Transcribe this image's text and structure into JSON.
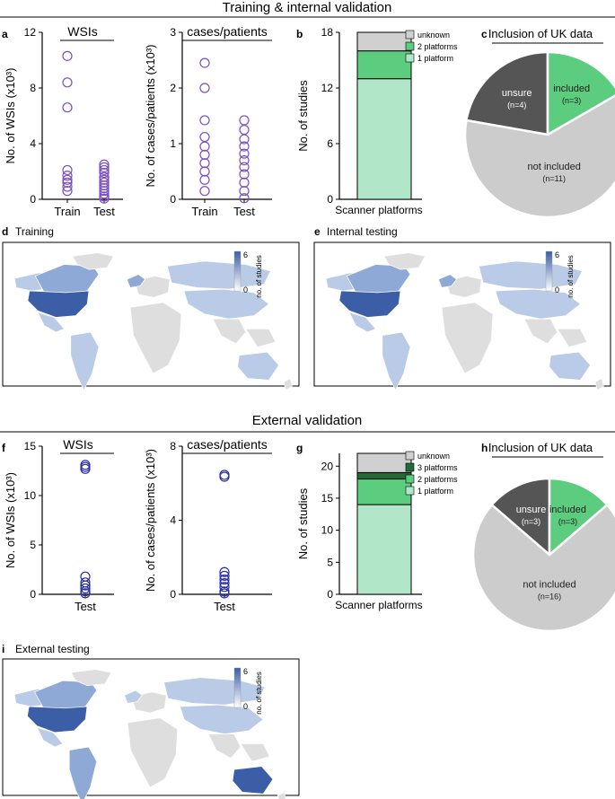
{
  "colors": {
    "circle_train": "#7b4fbf",
    "circle_ext": "#2b2fa6",
    "unknown": "#d0d0d0",
    "p3": "#1e6b35",
    "p2": "#5ccc7e",
    "p1": "#b2e6c8",
    "pie_unsure": "#555555",
    "pie_included": "#5ccc7e",
    "pie_not": "#cccccc",
    "map_land": "#dedede",
    "map_low": "#b9cbe6",
    "map_high": "#3b5ea6"
  },
  "headings": {
    "training": "Training & internal validation",
    "external": "External validation"
  },
  "panel_letters": {
    "a": "a",
    "b": "b",
    "c": "c",
    "d": "d",
    "e": "e",
    "f": "f",
    "g": "g",
    "h": "h",
    "i": "i"
  },
  "chart_data": [
    {
      "id": "a1",
      "type": "scatter",
      "title": "WSIs",
      "ylabel": "No. of WSIs (x10³)",
      "ylim": [
        0,
        12
      ],
      "yticks": [
        "0",
        "4",
        "8",
        "12"
      ],
      "categories": [
        "Train",
        "Test"
      ],
      "series": [
        {
          "name": "Train",
          "values": [
            10.3,
            8.4,
            6.6,
            2.1,
            1.7,
            1.4,
            1.2,
            0.9,
            0.6
          ]
        },
        {
          "name": "Test",
          "values": [
            2.5,
            2.3,
            2.1,
            1.9,
            1.6,
            1.4,
            1.2,
            1.0,
            0.8,
            0.6,
            0.4,
            0.2,
            0.05
          ]
        }
      ]
    },
    {
      "id": "a2",
      "type": "scatter",
      "title": "cases/patients",
      "ylabel": "No. of cases/patients (x10³)",
      "ylim": [
        0,
        3
      ],
      "yticks": [
        "0",
        "1",
        "2",
        "3"
      ],
      "categories": [
        "Train",
        "Test"
      ],
      "series": [
        {
          "name": "Train",
          "values": [
            2.45,
            2.0,
            1.42,
            1.12,
            0.95,
            0.8,
            0.65,
            0.5,
            0.35,
            0.15
          ]
        },
        {
          "name": "Test",
          "values": [
            1.42,
            1.25,
            1.08,
            0.95,
            0.82,
            0.7,
            0.58,
            0.45,
            0.3,
            0.15,
            0.02
          ]
        }
      ]
    },
    {
      "id": "b",
      "type": "bar",
      "stacked": true,
      "ylabel": "No. of studies",
      "xlabel": "Scanner platforms",
      "ylim": [
        0,
        18
      ],
      "yticks": [
        "0",
        "6",
        "12",
        "18"
      ],
      "series": [
        {
          "name": "1 platform",
          "value": 13,
          "color": "p1"
        },
        {
          "name": "2 platforms",
          "value": 3,
          "color": "p2"
        },
        {
          "name": "unknown",
          "value": 2,
          "color": "unknown"
        }
      ],
      "legend": [
        "unknown",
        "2 platforms",
        "1 platform"
      ]
    },
    {
      "id": "c",
      "type": "pie",
      "title": "Inclusion of UK data",
      "slices": [
        {
          "name": "unsure",
          "label": "unsure",
          "count": "(n=4)",
          "value": 4,
          "color": "pie_unsure"
        },
        {
          "name": "included",
          "label": "included",
          "count": "(n=3)",
          "value": 3,
          "color": "pie_included"
        },
        {
          "name": "not included",
          "label": "not included",
          "count": "(n=11)",
          "value": 11,
          "color": "pie_not"
        }
      ]
    },
    {
      "id": "f1",
      "type": "scatter",
      "title": "WSIs",
      "ylabel": "No. of WSIs (x10³)",
      "ylim": [
        0,
        15
      ],
      "yticks": [
        "0",
        "5",
        "10",
        "15"
      ],
      "categories": [
        "Test"
      ],
      "series": [
        {
          "name": "Test",
          "values": [
            13.1,
            12.9,
            12.7,
            1.8,
            1.2,
            0.9,
            0.6,
            0.3,
            0.1
          ]
        }
      ]
    },
    {
      "id": "f2",
      "type": "scatter",
      "title": "cases/patients",
      "ylabel": "No. of cases/patients (x10³)",
      "ylim": [
        0,
        8
      ],
      "yticks": [
        "0",
        "4",
        "8"
      ],
      "categories": [
        "Test"
      ],
      "series": [
        {
          "name": "Test",
          "values": [
            6.45,
            6.35,
            1.2,
            1.0,
            0.8,
            0.6,
            0.4,
            0.15,
            0.05
          ]
        }
      ]
    },
    {
      "id": "g",
      "type": "bar",
      "stacked": true,
      "ylabel": "No. of studies",
      "xlabel": "Scanner platforms",
      "ylim": [
        0,
        22
      ],
      "yticks": [
        "0",
        "5",
        "10",
        "15",
        "20"
      ],
      "series": [
        {
          "name": "1 platform",
          "value": 14,
          "color": "p1"
        },
        {
          "name": "2 platforms",
          "value": 4,
          "color": "p2"
        },
        {
          "name": "3 platforms",
          "value": 1,
          "color": "p3"
        },
        {
          "name": "unknown",
          "value": 3,
          "color": "unknown"
        }
      ],
      "legend": [
        "unknown",
        "3 platforms",
        "2 platforms",
        "1 platform"
      ]
    },
    {
      "id": "h",
      "type": "pie",
      "title": "Inclusion of UK data",
      "slices": [
        {
          "name": "unsure",
          "label": "unsure",
          "count": "(n=3)",
          "value": 3,
          "color": "pie_unsure"
        },
        {
          "name": "included",
          "label": "included",
          "count": "(n=3)",
          "value": 3,
          "color": "pie_included"
        },
        {
          "name": "not included",
          "label": "not included",
          "count": "(n=16)",
          "value": 16,
          "color": "pie_not"
        }
      ]
    },
    {
      "id": "d",
      "type": "heatmap",
      "title": "Training",
      "colorbar": {
        "label": "no. of studies",
        "min": "0",
        "max": "6"
      },
      "notable_regions": [
        {
          "region": "USA",
          "value": 6
        },
        {
          "region": "Canada",
          "value": 2
        },
        {
          "region": "Greenland",
          "value": 1
        },
        {
          "region": "Europe",
          "value": 2
        },
        {
          "region": "South America",
          "value": 1
        },
        {
          "region": "Russia/Asia",
          "value": 1
        },
        {
          "region": "Australia",
          "value": 1
        }
      ]
    },
    {
      "id": "e",
      "type": "heatmap",
      "title": "Internal testing",
      "colorbar": {
        "label": "no. of studies",
        "min": "0",
        "max": "6"
      },
      "notable_regions": [
        {
          "region": "USA",
          "value": 6
        },
        {
          "region": "Canada",
          "value": 2
        },
        {
          "region": "Greenland",
          "value": 1
        },
        {
          "region": "Europe",
          "value": 2
        },
        {
          "region": "South America",
          "value": 1
        },
        {
          "region": "Russia/Asia",
          "value": 1
        },
        {
          "region": "Australia",
          "value": 1
        }
      ]
    },
    {
      "id": "i",
      "type": "heatmap",
      "title": "External testing",
      "colorbar": {
        "label": "no. of studies",
        "min": "0",
        "max": "6"
      },
      "notable_regions": [
        {
          "region": "USA",
          "value": 6
        },
        {
          "region": "Canada",
          "value": 2
        },
        {
          "region": "Brazil",
          "value": 2
        },
        {
          "region": "Australia",
          "value": 4
        },
        {
          "region": "Europe",
          "value": 2
        },
        {
          "region": "Russia/Asia",
          "value": 1
        }
      ]
    }
  ]
}
